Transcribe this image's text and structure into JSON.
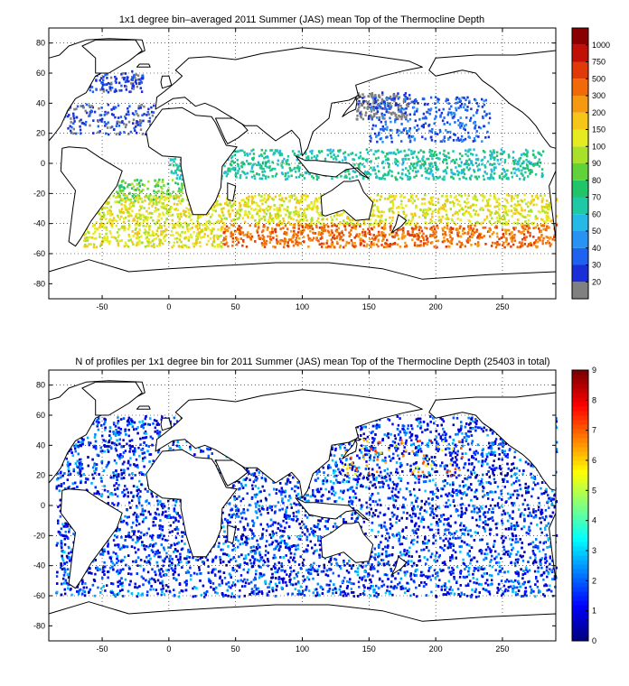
{
  "chart_data": [
    {
      "type": "heatmap",
      "title": "1x1 degree bin–averaged 2011 Summer (JAS) mean Top of the Thermocline Depth",
      "xlabel": "",
      "ylabel": "",
      "xlim": [
        -90,
        290
      ],
      "ylim": [
        -90,
        90
      ],
      "x_ticks": [
        -50,
        0,
        50,
        100,
        150,
        200,
        250
      ],
      "y_ticks": [
        80,
        60,
        40,
        20,
        0,
        -20,
        -40,
        -60,
        -80
      ],
      "grid": true,
      "colorbar": {
        "scale": "categorical",
        "labels": [
          "20",
          "30",
          "40",
          "50",
          "60",
          "70",
          "80",
          "90",
          "100",
          "150",
          "200",
          "300",
          "500",
          "750",
          "1000"
        ],
        "colors": [
          "#808080",
          "#1a2fd6",
          "#1f62f0",
          "#2893f2",
          "#26b9e8",
          "#1fc9a6",
          "#22c46a",
          "#62d23a",
          "#a8e02a",
          "#e6ea20",
          "#f5c518",
          "#f59a10",
          "#f06a0a",
          "#e03a08",
          "#c01008",
          "#8a0000"
        ]
      },
      "bands": [
        {
          "lat": [
            48,
            62
          ],
          "value_class": 1,
          "density": 0.55,
          "lon": [
            -60,
            -20
          ]
        },
        {
          "lat": [
            30,
            48
          ],
          "value_class": 0,
          "density": 0.6,
          "lon": [
            140,
            180
          ]
        },
        {
          "lat": [
            20,
            40
          ],
          "value_class": 1,
          "density": 0.35,
          "lon": [
            -80,
            -10
          ]
        },
        {
          "lat": [
            15,
            45
          ],
          "value_class": 2,
          "density": 0.3,
          "lon": [
            150,
            240
          ]
        },
        {
          "lat": [
            -10,
            10
          ],
          "value_class": 5,
          "density": 0.45,
          "lon": [
            0,
            280
          ]
        },
        {
          "lat": [
            -25,
            -10
          ],
          "value_class": 7,
          "density": 0.45,
          "lon": [
            -40,
            10
          ]
        },
        {
          "lat": [
            -40,
            -20
          ],
          "value_class": 9,
          "density": 0.5,
          "lon": [
            -55,
            290
          ]
        },
        {
          "lat": [
            -55,
            -40
          ],
          "value_class": 12,
          "density": 0.55,
          "lon": [
            40,
            290
          ]
        },
        {
          "lat": [
            -55,
            -40
          ],
          "value_class": 9,
          "density": 0.55,
          "lon": [
            -65,
            40
          ]
        }
      ]
    },
    {
      "type": "heatmap",
      "title": "N of profiles per 1x1 degree bin for 2011 Summer (JAS) mean Top of the Thermocline Depth  (25403 in total)",
      "xlabel": "",
      "ylabel": "",
      "xlim": [
        -90,
        290
      ],
      "ylim": [
        -90,
        90
      ],
      "x_ticks": [
        -50,
        0,
        50,
        100,
        150,
        200,
        250
      ],
      "y_ticks": [
        80,
        60,
        40,
        20,
        0,
        -20,
        -40,
        -60,
        -80
      ],
      "grid": true,
      "total_profiles": 25403,
      "colorbar": {
        "scale": "continuous",
        "labels": [
          "0",
          "1",
          "2",
          "3",
          "4",
          "5",
          "6",
          "7",
          "8",
          "9"
        ],
        "min": 0,
        "max": 9,
        "colormap": "jet"
      },
      "bands": [
        {
          "lat": [
            -60,
            60
          ],
          "value_class": 1,
          "density": 0.5,
          "lon": [
            -85,
            290
          ]
        },
        {
          "lat": [
            20,
            45
          ],
          "value_class": 6,
          "density": 0.08,
          "lon": [
            130,
            220
          ]
        }
      ]
    }
  ]
}
